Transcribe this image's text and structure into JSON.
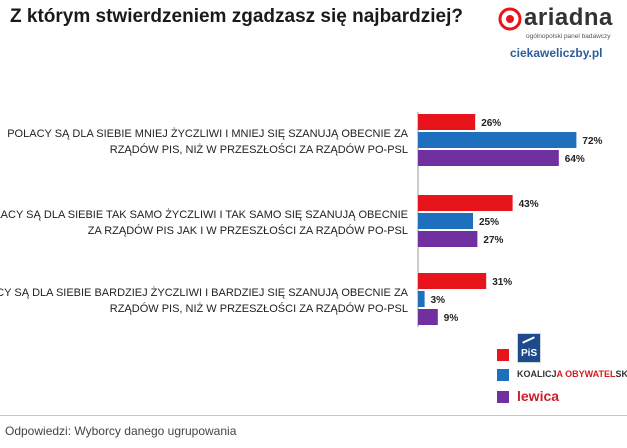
{
  "header": {
    "title": "Z którym stwierdzeniem zgadzasz się najbardziej?",
    "logo_text": "ariadna",
    "logo_subtitle": "ogólnopolski panel badawczy",
    "site": "ciekaweliczby.pl"
  },
  "legend": {
    "pis_text": "PiS",
    "ko_text_1": "KOALICJ",
    "ko_text_2": "A OBYWATEL",
    "ko_text_3": "SKA",
    "lewica_text": "lewica"
  },
  "footnote": "Odpowiedzi: Wyborcy danego ugrupowania",
  "colors": {
    "pis": "#e8141c",
    "ko": "#1f6fbf",
    "lewica": "#7030a0"
  },
  "chart_data": {
    "type": "bar",
    "orientation": "horizontal",
    "categories": [
      "POLACY SĄ DLA SIEBIE MNIEJ ŻYCZLIWI I MNIEJ SIĘ SZANUJĄ OBECNIE ZA RZĄDÓW PIS, NIŻ W PRZESZŁOŚCI ZA RZĄDÓW PO-PSL",
      "POLACY SĄ DLA SIEBIE TAK SAMO ŻYCZLIWI I TAK SAMO SIĘ SZANUJĄ OBECNIE ZA RZĄDÓW PIS JAK I W PRZESZŁOŚCI ZA RZĄDÓW PO-PSL",
      "POLACY SĄ DLA SIEBIE BARDZIEJ ŻYCZLIWI I BARDZIEJ SIĘ SZANUJĄ OBECNIE ZA RZĄDÓW PIS, NIŻ W PRZESZŁOŚCI ZA RZĄDÓW PO-PSL"
    ],
    "category_lines": [
      [
        "POLACY SĄ DLA SIEBIE MNIEJ ŻYCZLIWI I MNIEJ SIĘ SZANUJĄ OBECNIE ZA",
        "RZĄDÓW PIS, NIŻ W PRZESZŁOŚCI ZA RZĄDÓW PO-PSL"
      ],
      [
        "POLACY SĄ DLA SIEBIE TAK SAMO ŻYCZLIWI I TAK SAMO SIĘ SZANUJĄ OBECNIE",
        "ZA RZĄDÓW PIS JAK I W PRZESZŁOŚCI ZA RZĄDÓW PO-PSL"
      ],
      [
        "POLACY SĄ DLA SIEBIE BARDZIEJ ŻYCZLIWI I BARDZIEJ SIĘ SZANUJĄ OBECNIE ZA",
        "RZĄDÓW PIS, NIŻ W PRZESZŁOŚCI ZA RZĄDÓW PO-PSL"
      ]
    ],
    "series": [
      {
        "key": "pis",
        "values": [
          26,
          43,
          31
        ]
      },
      {
        "key": "ko",
        "values": [
          72,
          25,
          3
        ]
      },
      {
        "key": "lewica",
        "values": [
          64,
          27,
          9
        ]
      }
    ],
    "value_labels": [
      [
        "26%",
        "72%",
        "64%"
      ],
      [
        "43%",
        "25%",
        "27%"
      ],
      [
        "31%",
        "3%",
        "9%"
      ]
    ],
    "xlim": [
      0,
      100
    ],
    "grid": false
  }
}
